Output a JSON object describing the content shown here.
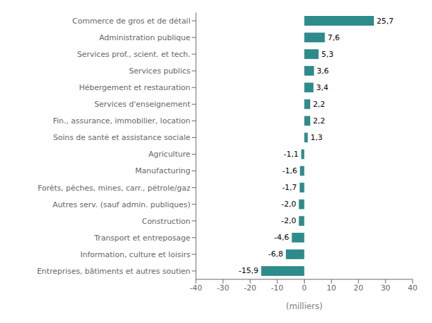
{
  "chart_data": {
    "type": "bar",
    "orientation": "horizontal",
    "categories": [
      "Entreprises, bâtiments et autres soutien",
      "Information, culture et loisirs",
      "Transport et entreposage",
      "Construction",
      "Autres serv. (sauf admin. publiques)",
      "Forêts, pêches, mines, carr., pétrole/gaz",
      "Manufacturing",
      "Agriculture",
      "Soins de santé et assistance sociale",
      "Fin., assurance, immobilier, location",
      "Services d'enseignement",
      "Hébergement et restauration",
      "Services publics",
      "Services prof., scient. et tech.",
      "Administration publique",
      "Commerce de gros et de détail"
    ],
    "values": [
      -15.9,
      -6.8,
      -4.6,
      -2.0,
      -2.0,
      -1.7,
      -1.6,
      -1.1,
      1.3,
      2.2,
      2.2,
      3.4,
      3.6,
      5.3,
      7.6,
      25.7
    ],
    "value_labels": [
      "-15,9",
      "-6,8",
      "-4,6",
      "-2,0",
      "-2,0",
      "-1,7",
      "-1,6",
      "-1,1",
      "1,3",
      "2,2",
      "2,2",
      "3,4",
      "3,6",
      "5,3",
      "7,6",
      "25,7"
    ],
    "color": "#2e8b8b",
    "xlabel": "(milliers)",
    "xlim": [
      -40,
      40
    ],
    "xticks": [
      -40,
      -30,
      -20,
      -10,
      0,
      10,
      20,
      30,
      40
    ],
    "grid": false,
    "data_labels": true
  }
}
